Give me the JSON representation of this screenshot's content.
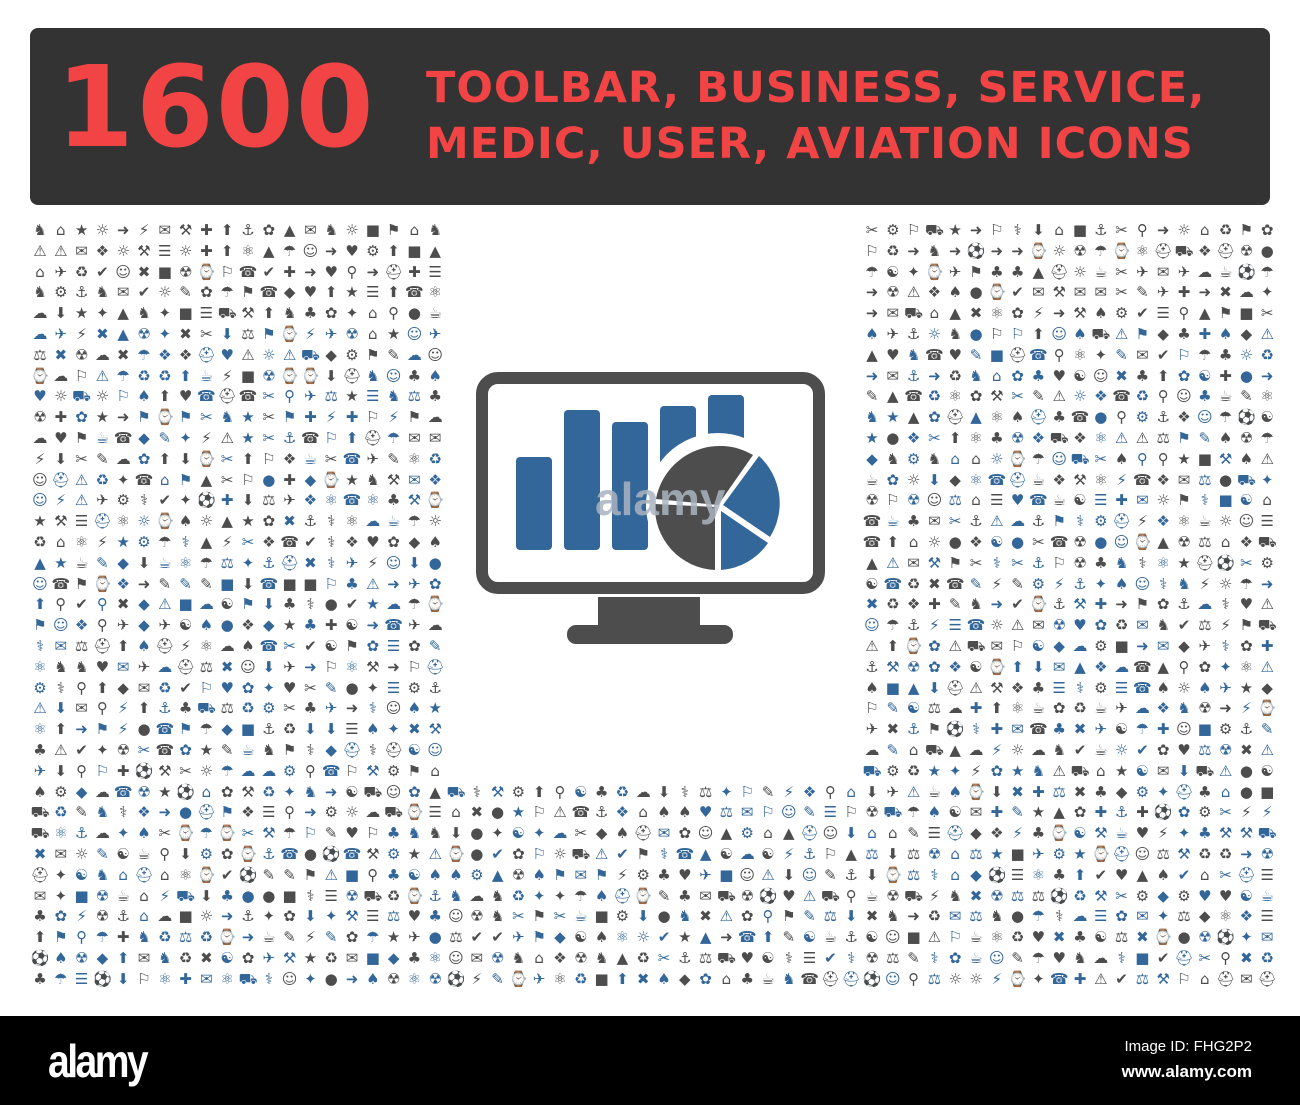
{
  "banner": {
    "count": "1600",
    "title_line1": "TOOLBAR, BUSINESS, SERVICE,",
    "title_line2": "MEDIC, USER, AVIATION ICONS"
  },
  "hero_icon": {
    "name": "monitor-bar-pie-chart-icon",
    "watermark": "alamy"
  },
  "colors": {
    "banner_bg": "#333333",
    "accent_red": "#f24444",
    "icon_gray": "#4d4d4d",
    "icon_blue": "#336699"
  },
  "footer": {
    "logo": "alamy",
    "image_id": "Image ID: FHG2P2",
    "website": "www.alamy.com"
  }
}
